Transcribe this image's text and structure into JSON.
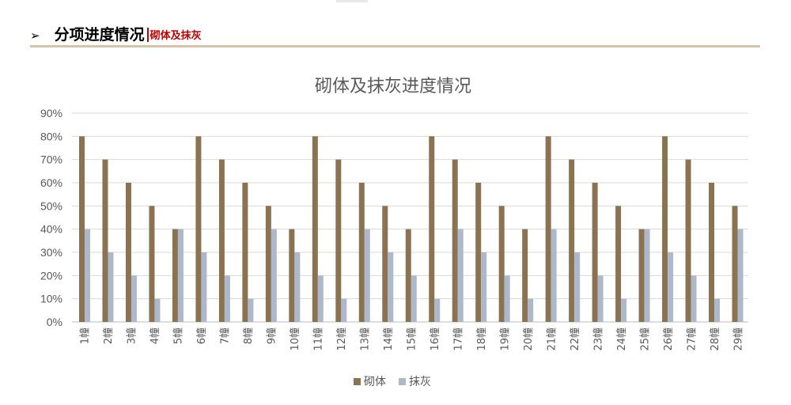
{
  "header": {
    "arrow_icon": "➢",
    "title": "分项进度情况",
    "subtitle": "砌体及抹灰"
  },
  "colors": {
    "series1": "#8b7352",
    "series2": "#adb9ca",
    "accent_red": "#c00000",
    "rule": "#d6c3a8",
    "grid": "#d9d9d9",
    "text": "#595959"
  },
  "chart_data": {
    "type": "bar",
    "title": "砌体及抹灰进度情况",
    "xlabel": "",
    "ylabel": "",
    "ylim": [
      0,
      90
    ],
    "yticks": [
      "0%",
      "10%",
      "20%",
      "30%",
      "40%",
      "50%",
      "60%",
      "70%",
      "80%",
      "90%"
    ],
    "grid": true,
    "legend_position": "bottom",
    "categories": [
      "1幢",
      "2幢",
      "3幢",
      "4幢",
      "5幢",
      "6幢",
      "7幢",
      "8幢",
      "9幢",
      "10幢",
      "11幢",
      "12幢",
      "13幢",
      "14幢",
      "15幢",
      "16幢",
      "17幢",
      "18幢",
      "19幢",
      "20幢",
      "21幢",
      "22幢",
      "23幢",
      "24幢",
      "25幢",
      "26幢",
      "27幢",
      "28幢",
      "29幢"
    ],
    "series": [
      {
        "name": "砌体",
        "values": [
          80,
          70,
          60,
          50,
          40,
          80,
          70,
          60,
          50,
          40,
          80,
          70,
          60,
          50,
          40,
          80,
          70,
          60,
          50,
          40,
          80,
          70,
          60,
          50,
          40,
          80,
          70,
          60,
          50
        ]
      },
      {
        "name": "抹灰",
        "values": [
          40,
          30,
          20,
          10,
          40,
          30,
          20,
          10,
          40,
          30,
          20,
          10,
          40,
          30,
          20,
          10,
          40,
          30,
          20,
          10,
          40,
          30,
          20,
          10,
          40,
          30,
          20,
          10,
          40
        ]
      }
    ]
  }
}
